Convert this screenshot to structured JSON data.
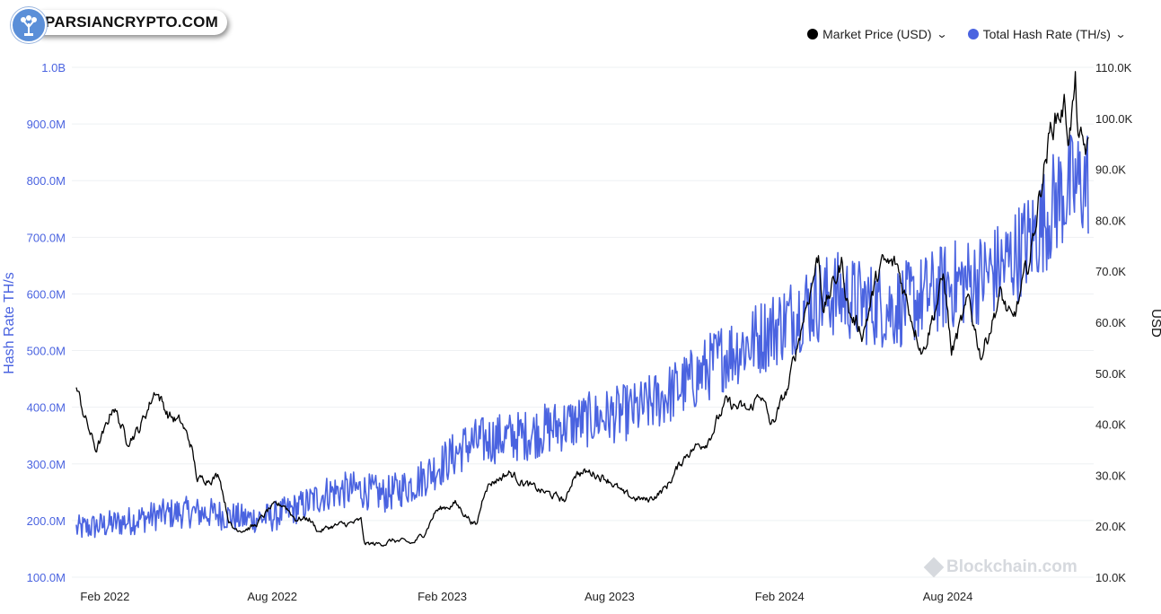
{
  "logo": {
    "text": "PARSIANCRYPTO.COM"
  },
  "watermark": "Blockchain.com",
  "chart_data": {
    "type": "line",
    "legend_placement": "top-right",
    "series": [
      {
        "name": "Market Price (USD)",
        "axis": "right",
        "color": "#000000"
      },
      {
        "name": "Total Hash Rate (TH/s)",
        "axis": "left",
        "color": "#4a63e0"
      }
    ],
    "x_ticks": [
      "Feb 2022",
      "Aug 2022",
      "Feb 2023",
      "Aug 2023",
      "Feb 2024",
      "Aug 2024"
    ],
    "x_tick_dates": [
      "2022-02-01",
      "2022-08-01",
      "2023-02-01",
      "2023-08-01",
      "2024-02-01",
      "2024-08-01"
    ],
    "x_range": [
      "2022-01-01",
      "2024-12-31"
    ],
    "left_axis": {
      "label": "Hash Rate TH/s",
      "color": "#4a63e0",
      "range": [
        100000000,
        1000000000
      ],
      "ticks": [
        100000000,
        200000000,
        300000000,
        400000000,
        500000000,
        600000000,
        700000000,
        800000000,
        900000000,
        1000000000
      ],
      "tick_labels": [
        "100.0M",
        "200.0M",
        "300.0M",
        "400.0M",
        "500.0M",
        "600.0M",
        "700.0M",
        "800.0M",
        "900.0M",
        "1.0B"
      ]
    },
    "right_axis": {
      "label": "USD",
      "color": "#111111",
      "range": [
        10000,
        110000
      ],
      "ticks": [
        10000,
        20000,
        30000,
        40000,
        50000,
        60000,
        70000,
        80000,
        90000,
        100000,
        110000
      ],
      "tick_labels": [
        "10.0K",
        "20.0K",
        "30.0K",
        "40.0K",
        "50.0K",
        "60.0K",
        "70.0K",
        "80.0K",
        "90.0K",
        "100.0K",
        "110.0K"
      ]
    },
    "price": [
      [
        "2022-01-01",
        47000
      ],
      [
        "2022-01-10",
        41500
      ],
      [
        "2022-01-22",
        35000
      ],
      [
        "2022-02-01",
        38500
      ],
      [
        "2022-02-10",
        44000
      ],
      [
        "2022-02-24",
        37000
      ],
      [
        "2022-03-10",
        39000
      ],
      [
        "2022-03-28",
        47000
      ],
      [
        "2022-04-10",
        42000
      ],
      [
        "2022-04-25",
        40000
      ],
      [
        "2022-05-05",
        36000
      ],
      [
        "2022-05-12",
        29000
      ],
      [
        "2022-05-25",
        29500
      ],
      [
        "2022-06-05",
        30000
      ],
      [
        "2022-06-14",
        22000
      ],
      [
        "2022-06-19",
        19500
      ],
      [
        "2022-07-01",
        19500
      ],
      [
        "2022-07-13",
        20000
      ],
      [
        "2022-07-30",
        23500
      ],
      [
        "2022-08-14",
        24300
      ],
      [
        "2022-08-26",
        21500
      ],
      [
        "2022-09-10",
        21500
      ],
      [
        "2022-09-20",
        19000
      ],
      [
        "2022-10-05",
        20000
      ],
      [
        "2022-10-25",
        20500
      ],
      [
        "2022-11-05",
        21000
      ],
      [
        "2022-11-09",
        16500
      ],
      [
        "2022-11-25",
        16500
      ],
      [
        "2022-12-10",
        17200
      ],
      [
        "2022-12-31",
        16600
      ],
      [
        "2023-01-12",
        18500
      ],
      [
        "2023-01-25",
        23000
      ],
      [
        "2023-02-15",
        24500
      ],
      [
        "2023-03-10",
        20000
      ],
      [
        "2023-03-20",
        28000
      ],
      [
        "2023-04-14",
        30500
      ],
      [
        "2023-05-10",
        27500
      ],
      [
        "2023-06-15",
        25000
      ],
      [
        "2023-06-24",
        30500
      ],
      [
        "2023-07-14",
        30500
      ],
      [
        "2023-08-01",
        29200
      ],
      [
        "2023-08-17",
        26000
      ],
      [
        "2023-09-11",
        25000
      ],
      [
        "2023-10-01",
        27500
      ],
      [
        "2023-10-24",
        34500
      ],
      [
        "2023-11-15",
        37000
      ],
      [
        "2023-12-05",
        44000
      ],
      [
        "2023-12-31",
        42500
      ],
      [
        "2024-01-11",
        46500
      ],
      [
        "2024-01-23",
        39500
      ],
      [
        "2024-02-10",
        47000
      ],
      [
        "2024-02-28",
        62000
      ],
      [
        "2024-03-14",
        73000
      ],
      [
        "2024-03-20",
        62500
      ],
      [
        "2024-04-08",
        71500
      ],
      [
        "2024-04-17",
        61500
      ],
      [
        "2024-05-01",
        58000
      ],
      [
        "2024-05-20",
        71000
      ],
      [
        "2024-06-07",
        71000
      ],
      [
        "2024-06-24",
        60500
      ],
      [
        "2024-07-05",
        54500
      ],
      [
        "2024-07-28",
        69000
      ],
      [
        "2024-08-05",
        54000
      ],
      [
        "2024-08-24",
        64000
      ],
      [
        "2024-09-06",
        53500
      ],
      [
        "2024-09-27",
        65500
      ],
      [
        "2024-10-10",
        59500
      ],
      [
        "2024-10-29",
        72500
      ],
      [
        "2024-11-12",
        89500
      ],
      [
        "2024-11-22",
        99000
      ],
      [
        "2024-12-05",
        102500
      ],
      [
        "2024-12-10",
        96500
      ],
      [
        "2024-12-17",
        106000
      ],
      [
        "2024-12-21",
        95000
      ],
      [
        "2024-12-26",
        94000
      ],
      [
        "2024-12-31",
        93500
      ]
    ],
    "hash_rate": [
      [
        "2022-01-01",
        185000000
      ],
      [
        "2022-02-01",
        192000000
      ],
      [
        "2022-03-01",
        200000000
      ],
      [
        "2022-04-01",
        210000000
      ],
      [
        "2022-05-01",
        215000000
      ],
      [
        "2022-06-01",
        212000000
      ],
      [
        "2022-07-01",
        203000000
      ],
      [
        "2022-08-01",
        206000000
      ],
      [
        "2022-09-01",
        225000000
      ],
      [
        "2022-10-01",
        250000000
      ],
      [
        "2022-11-01",
        255000000
      ],
      [
        "2022-12-01",
        245000000
      ],
      [
        "2023-01-01",
        265000000
      ],
      [
        "2023-02-01",
        300000000
      ],
      [
        "2023-03-01",
        335000000
      ],
      [
        "2023-04-01",
        345000000
      ],
      [
        "2023-05-01",
        350000000
      ],
      [
        "2023-06-01",
        365000000
      ],
      [
        "2023-07-01",
        375000000
      ],
      [
        "2023-08-01",
        385000000
      ],
      [
        "2023-09-01",
        395000000
      ],
      [
        "2023-10-01",
        420000000
      ],
      [
        "2023-11-01",
        450000000
      ],
      [
        "2023-12-01",
        490000000
      ],
      [
        "2024-01-01",
        515000000
      ],
      [
        "2024-02-01",
        545000000
      ],
      [
        "2024-03-01",
        580000000
      ],
      [
        "2024-04-01",
        600000000
      ],
      [
        "2024-05-01",
        585000000
      ],
      [
        "2024-06-01",
        575000000
      ],
      [
        "2024-07-01",
        590000000
      ],
      [
        "2024-08-01",
        615000000
      ],
      [
        "2024-09-01",
        625000000
      ],
      [
        "2024-10-01",
        650000000
      ],
      [
        "2024-11-01",
        700000000
      ],
      [
        "2024-12-01",
        775000000
      ],
      [
        "2024-12-31",
        800000000
      ]
    ],
    "hash_rate_noise_amplitude": 0.13
  }
}
